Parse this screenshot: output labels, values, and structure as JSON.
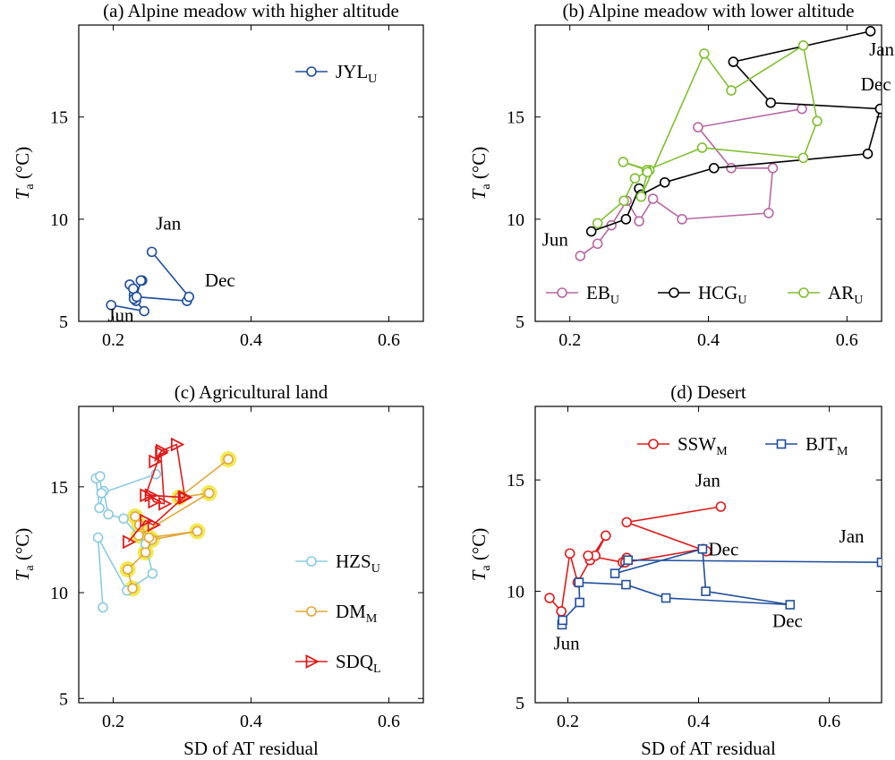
{
  "chart_data": [
    {
      "id": "a",
      "type": "line",
      "title": "(a) Alpine meadow with higher altitude",
      "xlabel": "",
      "ylabel": "T",
      "ylabel_sub": "a",
      "ylabel_unit": "(°C)",
      "xlim": [
        0.15,
        0.65
      ],
      "ylim": [
        5,
        19.5
      ],
      "xticks": [
        0.2,
        0.4,
        0.6
      ],
      "xtick_labels": [
        "0.2",
        "0.4",
        "0.6"
      ],
      "yticks": [
        5,
        10,
        15
      ],
      "ytick_labels": [
        "5",
        "10",
        "15"
      ],
      "legend_position": "top-right",
      "series": [
        {
          "name": "JYL",
          "sub": "U",
          "color": "#1f4e9c",
          "marker": "circle",
          "x": [
            0.197,
            0.245,
            0.233,
            0.23,
            0.224,
            0.229,
            0.23,
            0.242,
            0.24,
            0.234,
            0.307,
            0.31,
            0.256
          ],
          "y": [
            5.8,
            5.5,
            6.0,
            6.3,
            6.8,
            6.6,
            6.1,
            7.0,
            7.0,
            6.2,
            6.0,
            6.2,
            8.4
          ]
        }
      ],
      "annotations": [
        {
          "text": "Jan",
          "x": 0.262,
          "y": 9.5
        },
        {
          "text": "Dec",
          "x": 0.333,
          "y": 6.7
        },
        {
          "text": "Jun",
          "x": 0.192,
          "y": 5.0
        }
      ]
    },
    {
      "id": "b",
      "type": "line",
      "title": "(b) Alpine meadow with lower altitude",
      "xlabel": "",
      "ylabel": "T",
      "ylabel_sub": "a",
      "ylabel_unit": "(°C)",
      "xlim": [
        0.15,
        0.65
      ],
      "ylim": [
        5,
        19.5
      ],
      "xticks": [
        0.2,
        0.4,
        0.6
      ],
      "xtick_labels": [
        "0.2",
        "0.4",
        "0.6"
      ],
      "yticks": [
        5,
        10,
        15
      ],
      "ytick_labels": [
        "5",
        "10",
        "15"
      ],
      "legend_position": "bottom",
      "series": [
        {
          "name": "EB",
          "sub": "U",
          "color": "#b768a2",
          "marker": "circle",
          "x": [
            0.215,
            0.24,
            0.26,
            0.282,
            0.3,
            0.32,
            0.362,
            0.487,
            0.493,
            0.433,
            0.385,
            0.535
          ],
          "y": [
            8.2,
            8.8,
            9.7,
            10.9,
            9.9,
            11.0,
            10.0,
            10.3,
            12.5,
            12.5,
            14.5,
            15.4
          ]
        },
        {
          "name": "HCG",
          "sub": "U",
          "color": "#000000",
          "marker": "circle",
          "x": [
            0.231,
            0.281,
            0.3,
            0.303,
            0.337,
            0.408,
            0.63,
            0.648,
            0.49,
            0.436,
            0.634
          ],
          "y": [
            9.4,
            10.0,
            11.5,
            11.2,
            11.8,
            12.5,
            13.2,
            15.4,
            15.7,
            17.7,
            19.2
          ]
        },
        {
          "name": "AR",
          "sub": "U",
          "color": "#80bf30",
          "marker": "circle",
          "x": [
            0.24,
            0.278,
            0.294,
            0.315,
            0.277,
            0.311,
            0.391,
            0.537,
            0.557,
            0.537,
            0.433,
            0.394,
            0.303,
            0.312
          ],
          "y": [
            9.8,
            10.9,
            12.0,
            12.4,
            12.8,
            12.4,
            13.5,
            13.0,
            14.8,
            18.5,
            16.3,
            18.1,
            11.1,
            12.3
          ]
        }
      ],
      "annotations": [
        {
          "text": "Jan",
          "x": 0.632,
          "y": 18.0
        },
        {
          "text": "Dec",
          "x": 0.62,
          "y": 16.3
        },
        {
          "text": "Jun",
          "x": 0.16,
          "y": 8.7
        }
      ]
    },
    {
      "id": "c",
      "type": "line",
      "title": "(c) Agricultural land",
      "xlabel": "SD of AT residual",
      "ylabel": "T",
      "ylabel_sub": "a",
      "ylabel_unit": "(°C)",
      "xlim": [
        0.15,
        0.65
      ],
      "ylim": [
        4.8,
        18.8
      ],
      "xticks": [
        0.2,
        0.4,
        0.6
      ],
      "xtick_labels": [
        "0.2",
        "0.4",
        "0.6"
      ],
      "yticks": [
        5,
        10,
        15
      ],
      "ytick_labels": [
        "5",
        "10",
        "15"
      ],
      "legend_position": "right",
      "series": [
        {
          "name": "HZS",
          "sub": "U",
          "color": "#8ccbe0",
          "marker": "circle",
          "x": [
            0.185,
            0.178,
            0.22,
            0.257,
            0.247,
            0.215,
            0.193,
            0.186,
            0.18,
            0.175,
            0.181,
            0.183,
            0.262
          ],
          "y": [
            9.3,
            12.6,
            10.1,
            10.9,
            12.3,
            13.5,
            13.7,
            14.8,
            14.0,
            15.4,
            15.5,
            14.7,
            15.6
          ]
        },
        {
          "name": "DM",
          "sub": "M",
          "color": "#e3a73a",
          "marker": "circle",
          "x": [
            0.228,
            0.221,
            0.247,
            0.256,
            0.322,
            0.252,
            0.238,
            0.232,
            0.237,
            0.339,
            0.296,
            0.367
          ],
          "y": [
            10.2,
            11.1,
            11.9,
            12.5,
            12.9,
            12.6,
            13.2,
            13.6,
            12.7,
            14.7,
            14.5,
            16.3
          ]
        },
        {
          "name": "SDQ",
          "sub": "L",
          "color": "#e01b1b",
          "marker": "triangle-right",
          "x": [
            0.222,
            0.247,
            0.258,
            0.302,
            0.254,
            0.259,
            0.274,
            0.269,
            0.247,
            0.304,
            0.292,
            0.27,
            0.26
          ],
          "y": [
            12.4,
            13.4,
            13.2,
            14.5,
            14.6,
            14.3,
            14.2,
            16.6,
            14.6,
            14.5,
            17.0,
            16.7,
            16.2
          ]
        }
      ],
      "halo_color": "#f0e840",
      "annotations": []
    },
    {
      "id": "d",
      "type": "line",
      "title": "(d) Desert",
      "xlabel": "SD of AT residual",
      "ylabel": "T",
      "ylabel_sub": "a",
      "ylabel_unit": "(°C)",
      "xlim": [
        0.15,
        0.68
      ],
      "ylim": [
        5,
        18.3
      ],
      "xticks": [
        0.2,
        0.4,
        0.6
      ],
      "xtick_labels": [
        "0.2",
        "0.4",
        "0.6"
      ],
      "yticks": [
        5,
        10,
        15
      ],
      "ytick_labels": [
        "5",
        "10",
        "15"
      ],
      "legend_position": "top",
      "series": [
        {
          "name": "SSW",
          "sub": "M",
          "color": "#e01b1b",
          "marker": "circle",
          "x": [
            0.172,
            0.19,
            0.203,
            0.215,
            0.234,
            0.258,
            0.242,
            0.231,
            0.284,
            0.29,
            0.288,
            0.407,
            0.412,
            0.29,
            0.434
          ],
          "y": [
            9.7,
            9.1,
            11.7,
            10.4,
            11.4,
            12.5,
            11.6,
            11.6,
            11.3,
            11.5,
            11.3,
            11.9,
            11.8,
            13.1,
            13.8
          ]
        },
        {
          "name": "BJT",
          "sub": "M",
          "color": "#1f4e9c",
          "marker": "square",
          "x": [
            0.191,
            0.192,
            0.218,
            0.217,
            0.289,
            0.35,
            0.54,
            0.411,
            0.406,
            0.272,
            0.292,
            0.68
          ],
          "y": [
            8.5,
            8.7,
            9.5,
            10.4,
            10.3,
            9.7,
            9.4,
            10.0,
            11.9,
            10.8,
            11.4,
            11.3
          ]
        }
      ],
      "annotations": [
        {
          "text": "Jan",
          "x": 0.395,
          "y": 14.7
        },
        {
          "text": "Dec",
          "x": 0.415,
          "y": 11.6
        },
        {
          "text": "Jan",
          "x": 0.615,
          "y": 12.2
        },
        {
          "text": "Dec",
          "x": 0.513,
          "y": 8.4
        },
        {
          "text": "Jun",
          "x": 0.178,
          "y": 7.4
        }
      ]
    }
  ]
}
